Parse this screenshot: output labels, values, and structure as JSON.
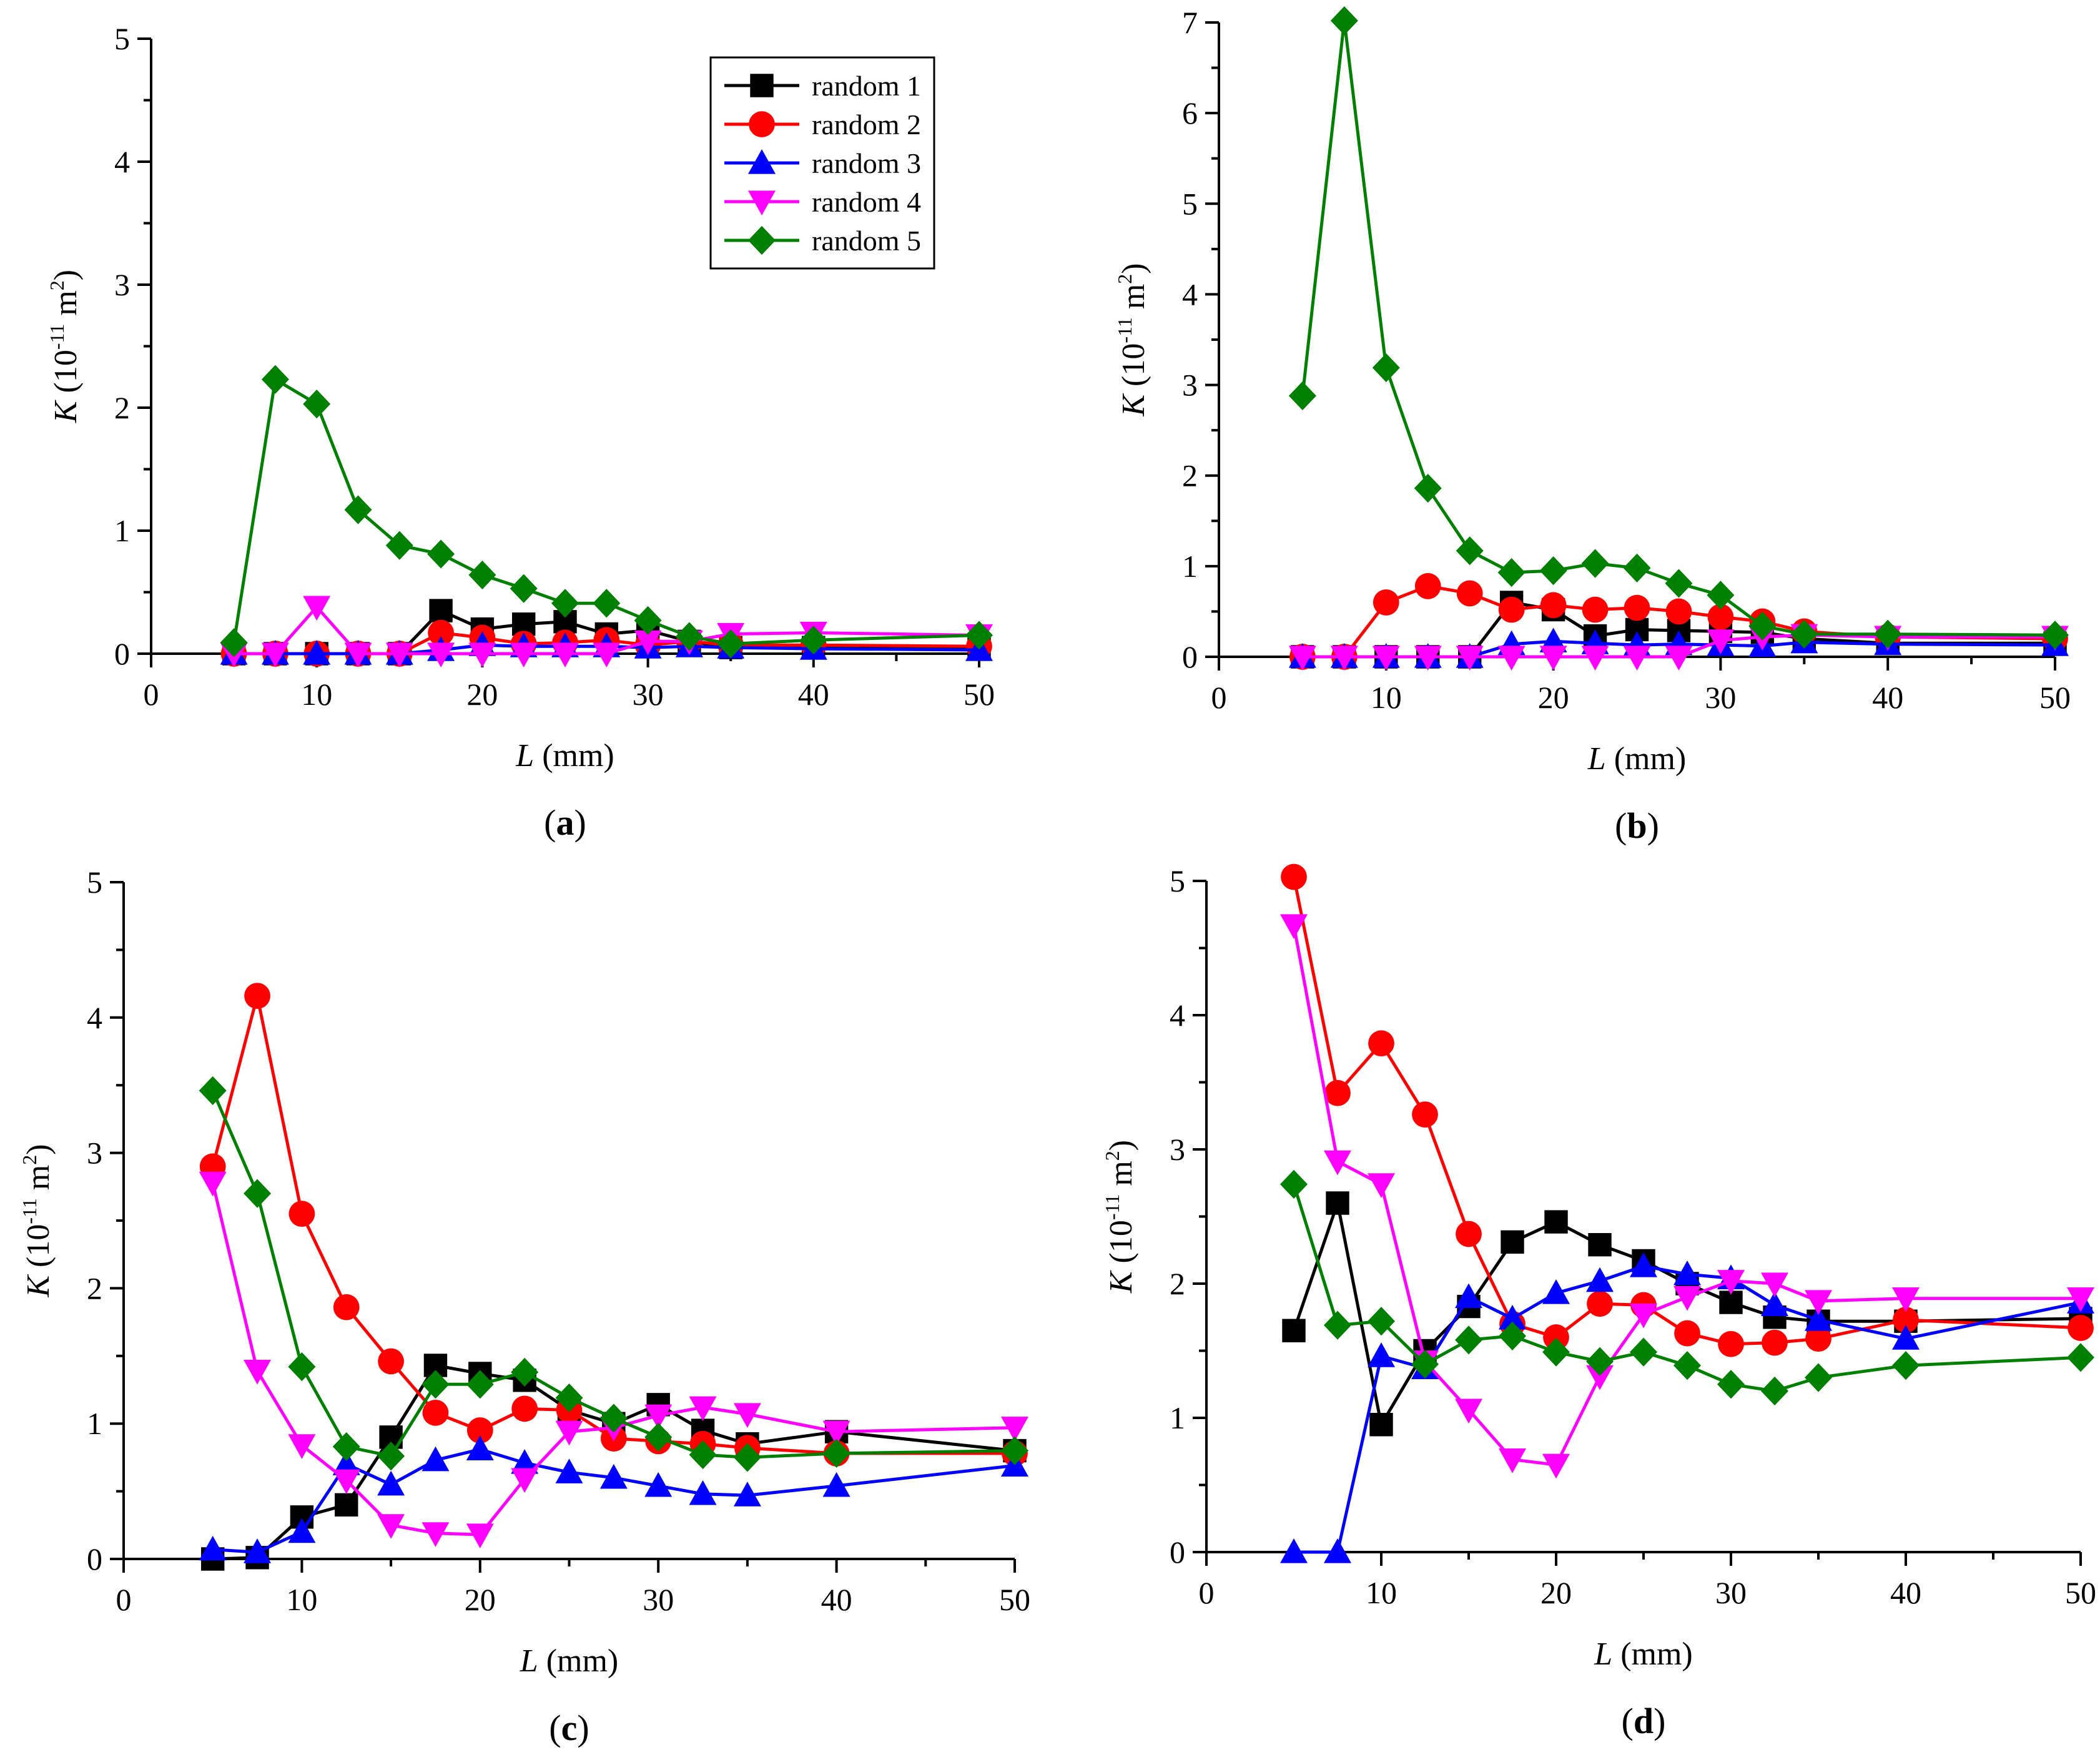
{
  "colors": {
    "random 1": "#000000",
    "random 2": "#ff0000",
    "random 3": "#0000ff",
    "random 4": "#ff00ff",
    "random 5": "#008000"
  },
  "markers": {
    "random 1": "square",
    "random 2": "circle",
    "random 3": "triangle-up",
    "random 4": "triangle-down",
    "random 5": "diamond"
  },
  "chart_data": [
    {
      "type": "line",
      "panel_label": "(a)",
      "xlabel_var": "L",
      "xlabel_unit": " (mm)",
      "ylabel_var": "K",
      "ylabel_pre": " (10",
      "ylabel_exp": "-11",
      "ylabel_mid": " m",
      "ylabel_exp2": "2",
      "ylabel_post": ")",
      "xlim": [
        0,
        50
      ],
      "ylim": [
        0,
        5
      ],
      "xticks": [
        0,
        10,
        20,
        30,
        40,
        50
      ],
      "yticks": [
        0,
        1,
        2,
        3,
        4,
        5
      ],
      "legend": "top-right",
      "x": [
        5,
        7.5,
        10,
        12.5,
        15,
        17.5,
        20,
        22.5,
        25,
        27.5,
        30,
        32.5,
        35,
        40,
        50
      ],
      "series": [
        {
          "name": "random 1",
          "values": [
            0.0,
            0.0,
            0.0,
            0.0,
            0.0,
            0.35,
            0.2,
            0.24,
            0.26,
            0.16,
            0.19,
            0.1,
            0.05,
            0.05,
            0.04
          ]
        },
        {
          "name": "random 2",
          "values": [
            0.0,
            0.0,
            0.0,
            0.0,
            0.0,
            0.17,
            0.13,
            0.08,
            0.09,
            0.11,
            0.07,
            0.1,
            0.07,
            0.07,
            0.06
          ]
        },
        {
          "name": "random 3",
          "values": [
            0.0,
            0.0,
            0.0,
            0.0,
            0.0,
            0.03,
            0.07,
            0.06,
            0.06,
            0.06,
            0.05,
            0.06,
            0.05,
            0.04,
            0.03
          ]
        },
        {
          "name": "random 4",
          "values": [
            0.0,
            0.0,
            0.38,
            0.0,
            0.0,
            0.0,
            0.0,
            0.0,
            0.0,
            0.0,
            0.1,
            0.1,
            0.16,
            0.17,
            0.15
          ]
        },
        {
          "name": "random 5",
          "values": [
            0.09,
            2.23,
            2.03,
            1.17,
            0.88,
            0.81,
            0.64,
            0.53,
            0.41,
            0.41,
            0.27,
            0.14,
            0.08,
            0.11,
            0.15
          ]
        }
      ]
    },
    {
      "type": "line",
      "panel_label": "(b)",
      "xlabel_var": "L",
      "xlabel_unit": " (mm)",
      "ylabel_var": "K",
      "ylabel_pre": " (10",
      "ylabel_exp": "-11",
      "ylabel_mid": " m",
      "ylabel_exp2": "2",
      "ylabel_post": ")",
      "xlim": [
        0,
        50
      ],
      "ylim": [
        0,
        7
      ],
      "xticks": [
        0,
        10,
        20,
        30,
        40,
        50
      ],
      "yticks": [
        0,
        1,
        2,
        3,
        4,
        5,
        6,
        7
      ],
      "legend": "none",
      "x": [
        5,
        7.5,
        10,
        12.5,
        15,
        17.5,
        20,
        22.5,
        25,
        27.5,
        30,
        32.5,
        35,
        40,
        50
      ],
      "series": [
        {
          "name": "random 1",
          "values": [
            0.0,
            0.0,
            0.0,
            0.0,
            0.0,
            0.6,
            0.52,
            0.23,
            0.3,
            0.29,
            0.28,
            0.27,
            0.2,
            0.15,
            0.15
          ]
        },
        {
          "name": "random 2",
          "values": [
            0.0,
            0.0,
            0.6,
            0.78,
            0.7,
            0.52,
            0.57,
            0.52,
            0.54,
            0.5,
            0.44,
            0.39,
            0.28,
            0.22,
            0.2
          ]
        },
        {
          "name": "random 3",
          "values": [
            0.0,
            0.0,
            0.0,
            0.0,
            0.0,
            0.14,
            0.17,
            0.15,
            0.13,
            0.14,
            0.13,
            0.12,
            0.16,
            0.14,
            0.13
          ]
        },
        {
          "name": "random 4",
          "values": [
            0.0,
            0.0,
            0.0,
            0.0,
            0.0,
            0.0,
            0.0,
            0.0,
            0.0,
            0.0,
            0.18,
            0.22,
            0.24,
            0.22,
            0.22
          ]
        },
        {
          "name": "random 5",
          "values": [
            2.88,
            7.02,
            3.19,
            1.86,
            1.17,
            0.93,
            0.95,
            1.03,
            0.98,
            0.81,
            0.68,
            0.34,
            0.25,
            0.25,
            0.24
          ]
        }
      ]
    },
    {
      "type": "line",
      "panel_label": "(c)",
      "xlabel_var": "L",
      "xlabel_unit": " (mm)",
      "ylabel_var": "K",
      "ylabel_pre": " (10",
      "ylabel_exp": "-11",
      "ylabel_mid": " m",
      "ylabel_exp2": "2",
      "ylabel_post": ")",
      "xlim": [
        0,
        50
      ],
      "ylim": [
        0,
        5
      ],
      "xticks": [
        0,
        10,
        20,
        30,
        40,
        50
      ],
      "yticks": [
        0,
        1,
        2,
        3,
        4,
        5
      ],
      "legend": "none",
      "x": [
        5,
        7.5,
        10,
        12.5,
        15,
        17.5,
        20,
        22.5,
        25,
        27.5,
        30,
        32.5,
        35,
        40,
        50
      ],
      "series": [
        {
          "name": "random 1",
          "values": [
            0.0,
            0.01,
            0.31,
            0.4,
            0.9,
            1.43,
            1.37,
            1.32,
            1.1,
            1.0,
            1.14,
            0.95,
            0.85,
            0.94,
            0.8
          ]
        },
        {
          "name": "random 2",
          "values": [
            2.9,
            4.16,
            2.55,
            1.86,
            1.46,
            1.08,
            0.95,
            1.11,
            1.1,
            0.89,
            0.87,
            0.85,
            0.82,
            0.78,
            0.78
          ]
        },
        {
          "name": "random 3",
          "values": [
            0.07,
            0.05,
            0.2,
            0.7,
            0.55,
            0.73,
            0.81,
            0.71,
            0.64,
            0.6,
            0.54,
            0.48,
            0.47,
            0.54,
            0.69
          ]
        },
        {
          "name": "random 4",
          "values": [
            2.78,
            1.39,
            0.84,
            0.58,
            0.25,
            0.19,
            0.18,
            0.59,
            0.94,
            0.97,
            1.06,
            1.12,
            1.07,
            0.94,
            0.97
          ]
        },
        {
          "name": "random 5",
          "values": [
            3.46,
            2.7,
            1.42,
            0.83,
            0.76,
            1.29,
            1.29,
            1.38,
            1.19,
            1.04,
            0.9,
            0.77,
            0.75,
            0.78,
            0.8
          ]
        }
      ]
    },
    {
      "type": "line",
      "panel_label": "(d)",
      "xlabel_var": "L",
      "xlabel_unit": " (mm)",
      "ylabel_var": "K",
      "ylabel_pre": " (10",
      "ylabel_exp": "-11",
      "ylabel_mid": " m",
      "ylabel_exp2": "2",
      "ylabel_post": ")",
      "xlim": [
        0,
        50
      ],
      "ylim": [
        0,
        5
      ],
      "xticks": [
        0,
        10,
        20,
        30,
        40,
        50
      ],
      "yticks": [
        0,
        1,
        2,
        3,
        4,
        5
      ],
      "legend": "none",
      "x": [
        5,
        7.5,
        10,
        12.5,
        15,
        17.5,
        20,
        22.5,
        25,
        27.5,
        30,
        32.5,
        35,
        40,
        50
      ],
      "series": [
        {
          "name": "random 1",
          "values": [
            1.65,
            2.6,
            0.95,
            1.5,
            1.83,
            2.31,
            2.46,
            2.29,
            2.17,
            2.0,
            1.86,
            1.75,
            1.72,
            1.72,
            1.74
          ]
        },
        {
          "name": "random 2",
          "values": [
            5.03,
            3.42,
            3.79,
            3.26,
            2.37,
            1.7,
            1.6,
            1.85,
            1.84,
            1.63,
            1.55,
            1.56,
            1.59,
            1.73,
            1.67
          ]
        },
        {
          "name": "random 3",
          "values": [
            0.0,
            0.0,
            1.46,
            1.37,
            1.9,
            1.74,
            1.93,
            2.02,
            2.13,
            2.07,
            2.04,
            1.84,
            1.73,
            1.59,
            1.86
          ]
        },
        {
          "name": "random 4",
          "values": [
            4.67,
            2.91,
            2.74,
            1.42,
            1.06,
            0.69,
            0.65,
            1.31,
            1.77,
            1.9,
            2.02,
            2.0,
            1.87,
            1.89,
            1.89
          ]
        },
        {
          "name": "random 5",
          "values": [
            2.74,
            1.69,
            1.72,
            1.4,
            1.58,
            1.61,
            1.49,
            1.42,
            1.49,
            1.39,
            1.25,
            1.2,
            1.3,
            1.39,
            1.45
          ]
        }
      ]
    }
  ]
}
